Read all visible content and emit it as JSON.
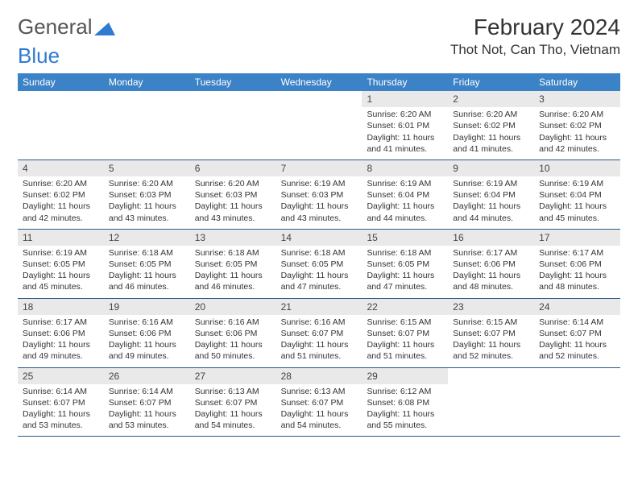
{
  "logo": {
    "text1": "General",
    "text2": "Blue",
    "icon_color": "#2f7bd0"
  },
  "title": "February 2024",
  "location": "Thot Not, Can Tho, Vietnam",
  "colors": {
    "header_bg": "#3b82c7",
    "header_fg": "#ffffff",
    "daynum_bg": "#e9e9e9",
    "border": "#2a5a8c",
    "text": "#333333"
  },
  "weekdays": [
    "Sunday",
    "Monday",
    "Tuesday",
    "Wednesday",
    "Thursday",
    "Friday",
    "Saturday"
  ],
  "weeks": [
    [
      null,
      null,
      null,
      null,
      {
        "n": "1",
        "sr": "Sunrise: 6:20 AM",
        "ss": "Sunset: 6:01 PM",
        "dl": "Daylight: 11 hours and 41 minutes."
      },
      {
        "n": "2",
        "sr": "Sunrise: 6:20 AM",
        "ss": "Sunset: 6:02 PM",
        "dl": "Daylight: 11 hours and 41 minutes."
      },
      {
        "n": "3",
        "sr": "Sunrise: 6:20 AM",
        "ss": "Sunset: 6:02 PM",
        "dl": "Daylight: 11 hours and 42 minutes."
      }
    ],
    [
      {
        "n": "4",
        "sr": "Sunrise: 6:20 AM",
        "ss": "Sunset: 6:02 PM",
        "dl": "Daylight: 11 hours and 42 minutes."
      },
      {
        "n": "5",
        "sr": "Sunrise: 6:20 AM",
        "ss": "Sunset: 6:03 PM",
        "dl": "Daylight: 11 hours and 43 minutes."
      },
      {
        "n": "6",
        "sr": "Sunrise: 6:20 AM",
        "ss": "Sunset: 6:03 PM",
        "dl": "Daylight: 11 hours and 43 minutes."
      },
      {
        "n": "7",
        "sr": "Sunrise: 6:19 AM",
        "ss": "Sunset: 6:03 PM",
        "dl": "Daylight: 11 hours and 43 minutes."
      },
      {
        "n": "8",
        "sr": "Sunrise: 6:19 AM",
        "ss": "Sunset: 6:04 PM",
        "dl": "Daylight: 11 hours and 44 minutes."
      },
      {
        "n": "9",
        "sr": "Sunrise: 6:19 AM",
        "ss": "Sunset: 6:04 PM",
        "dl": "Daylight: 11 hours and 44 minutes."
      },
      {
        "n": "10",
        "sr": "Sunrise: 6:19 AM",
        "ss": "Sunset: 6:04 PM",
        "dl": "Daylight: 11 hours and 45 minutes."
      }
    ],
    [
      {
        "n": "11",
        "sr": "Sunrise: 6:19 AM",
        "ss": "Sunset: 6:05 PM",
        "dl": "Daylight: 11 hours and 45 minutes."
      },
      {
        "n": "12",
        "sr": "Sunrise: 6:18 AM",
        "ss": "Sunset: 6:05 PM",
        "dl": "Daylight: 11 hours and 46 minutes."
      },
      {
        "n": "13",
        "sr": "Sunrise: 6:18 AM",
        "ss": "Sunset: 6:05 PM",
        "dl": "Daylight: 11 hours and 46 minutes."
      },
      {
        "n": "14",
        "sr": "Sunrise: 6:18 AM",
        "ss": "Sunset: 6:05 PM",
        "dl": "Daylight: 11 hours and 47 minutes."
      },
      {
        "n": "15",
        "sr": "Sunrise: 6:18 AM",
        "ss": "Sunset: 6:05 PM",
        "dl": "Daylight: 11 hours and 47 minutes."
      },
      {
        "n": "16",
        "sr": "Sunrise: 6:17 AM",
        "ss": "Sunset: 6:06 PM",
        "dl": "Daylight: 11 hours and 48 minutes."
      },
      {
        "n": "17",
        "sr": "Sunrise: 6:17 AM",
        "ss": "Sunset: 6:06 PM",
        "dl": "Daylight: 11 hours and 48 minutes."
      }
    ],
    [
      {
        "n": "18",
        "sr": "Sunrise: 6:17 AM",
        "ss": "Sunset: 6:06 PM",
        "dl": "Daylight: 11 hours and 49 minutes."
      },
      {
        "n": "19",
        "sr": "Sunrise: 6:16 AM",
        "ss": "Sunset: 6:06 PM",
        "dl": "Daylight: 11 hours and 49 minutes."
      },
      {
        "n": "20",
        "sr": "Sunrise: 6:16 AM",
        "ss": "Sunset: 6:06 PM",
        "dl": "Daylight: 11 hours and 50 minutes."
      },
      {
        "n": "21",
        "sr": "Sunrise: 6:16 AM",
        "ss": "Sunset: 6:07 PM",
        "dl": "Daylight: 11 hours and 51 minutes."
      },
      {
        "n": "22",
        "sr": "Sunrise: 6:15 AM",
        "ss": "Sunset: 6:07 PM",
        "dl": "Daylight: 11 hours and 51 minutes."
      },
      {
        "n": "23",
        "sr": "Sunrise: 6:15 AM",
        "ss": "Sunset: 6:07 PM",
        "dl": "Daylight: 11 hours and 52 minutes."
      },
      {
        "n": "24",
        "sr": "Sunrise: 6:14 AM",
        "ss": "Sunset: 6:07 PM",
        "dl": "Daylight: 11 hours and 52 minutes."
      }
    ],
    [
      {
        "n": "25",
        "sr": "Sunrise: 6:14 AM",
        "ss": "Sunset: 6:07 PM",
        "dl": "Daylight: 11 hours and 53 minutes."
      },
      {
        "n": "26",
        "sr": "Sunrise: 6:14 AM",
        "ss": "Sunset: 6:07 PM",
        "dl": "Daylight: 11 hours and 53 minutes."
      },
      {
        "n": "27",
        "sr": "Sunrise: 6:13 AM",
        "ss": "Sunset: 6:07 PM",
        "dl": "Daylight: 11 hours and 54 minutes."
      },
      {
        "n": "28",
        "sr": "Sunrise: 6:13 AM",
        "ss": "Sunset: 6:07 PM",
        "dl": "Daylight: 11 hours and 54 minutes."
      },
      {
        "n": "29",
        "sr": "Sunrise: 6:12 AM",
        "ss": "Sunset: 6:08 PM",
        "dl": "Daylight: 11 hours and 55 minutes."
      },
      null,
      null
    ]
  ]
}
